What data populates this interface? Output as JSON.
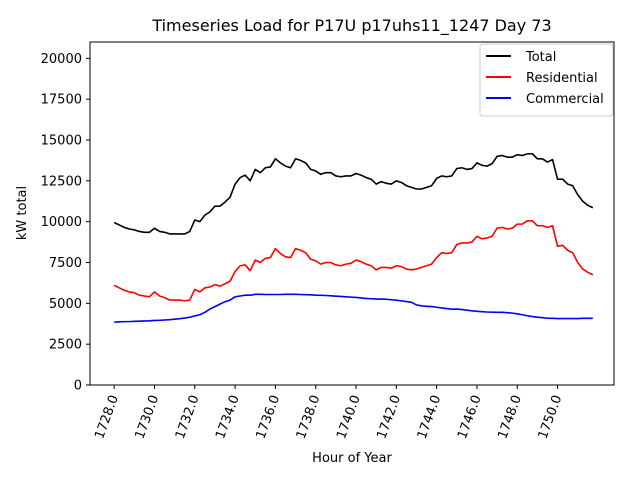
{
  "chart_data": {
    "type": "line",
    "title": "Timeseries Load for P17U p17uhs11_1247  Day 73",
    "xlabel": "Hour of Year",
    "ylabel": "kW total",
    "xlim": [
      1726.8,
      1752.8
    ],
    "ylim": [
      0,
      21000
    ],
    "xticks": [
      1728,
      1730,
      1732,
      1734,
      1736,
      1738,
      1740,
      1742,
      1744,
      1746,
      1748,
      1750
    ],
    "xtick_labels": [
      "1728.0",
      "1730.0",
      "1732.0",
      "1734.0",
      "1736.0",
      "1738.0",
      "1740.0",
      "1742.0",
      "1744.0",
      "1746.0",
      "1748.0",
      "1750.0"
    ],
    "yticks": [
      0,
      2500,
      5000,
      7500,
      10000,
      12500,
      15000,
      17500,
      20000
    ],
    "ytick_labels": [
      "0",
      "2500",
      "5000",
      "7500",
      "10000",
      "12500",
      "15000",
      "17500",
      "20000"
    ],
    "legend_position": "top-right",
    "x_start": 1728,
    "x_step": 0.25,
    "series": [
      {
        "name": "Total",
        "color": "#000000",
        "values": [
          9950,
          9800,
          9650,
          9550,
          9500,
          9400,
          9350,
          9350,
          9600,
          9400,
          9350,
          9250,
          9250,
          9250,
          9250,
          9400,
          10100,
          10000,
          10400,
          10600,
          10950,
          10950,
          11200,
          11500,
          12300,
          12700,
          12850,
          12500,
          13200,
          13000,
          13300,
          13350,
          13850,
          13600,
          13400,
          13300,
          13850,
          13750,
          13600,
          13200,
          13100,
          12900,
          13000,
          13000,
          12800,
          12750,
          12800,
          12800,
          12950,
          12850,
          12700,
          12600,
          12300,
          12450,
          12350,
          12300,
          12500,
          12400,
          12200,
          12100,
          12000,
          12000,
          12100,
          12200,
          12650,
          12800,
          12750,
          12800,
          13250,
          13300,
          13200,
          13250,
          13600,
          13450,
          13400,
          13550,
          14000,
          14050,
          13950,
          13950,
          14100,
          14050,
          14150,
          14150,
          13850,
          13850,
          13650,
          13800,
          12600,
          12600,
          12300,
          12200,
          11650,
          11250,
          11000,
          10850
        ]
      },
      {
        "name": "Residential",
        "color": "#ff0000",
        "values": [
          6100,
          5950,
          5800,
          5700,
          5650,
          5500,
          5450,
          5400,
          5700,
          5450,
          5350,
          5200,
          5200,
          5200,
          5150,
          5200,
          5850,
          5700,
          5950,
          6000,
          6150,
          6050,
          6200,
          6350,
          6950,
          7300,
          7350,
          7000,
          7650,
          7500,
          7750,
          7800,
          8350,
          8050,
          7850,
          7800,
          8350,
          8250,
          8100,
          7700,
          7600,
          7400,
          7500,
          7500,
          7350,
          7300,
          7400,
          7450,
          7650,
          7550,
          7400,
          7300,
          7050,
          7200,
          7200,
          7150,
          7300,
          7250,
          7100,
          7050,
          7100,
          7200,
          7300,
          7400,
          7800,
          8100,
          8050,
          8100,
          8600,
          8700,
          8700,
          8750,
          9100,
          8950,
          9000,
          9100,
          9600,
          9650,
          9550,
          9600,
          9850,
          9850,
          10050,
          10050,
          9750,
          9750,
          9650,
          9750,
          8500,
          8550,
          8250,
          8100,
          7500,
          7100,
          6900,
          6750
        ]
      },
      {
        "name": "Commercial",
        "color": "#0000ff",
        "values": [
          3850,
          3870,
          3880,
          3880,
          3900,
          3910,
          3920,
          3930,
          3950,
          3960,
          3980,
          4000,
          4030,
          4060,
          4100,
          4150,
          4230,
          4300,
          4450,
          4650,
          4800,
          4950,
          5100,
          5200,
          5400,
          5450,
          5500,
          5500,
          5550,
          5550,
          5540,
          5540,
          5540,
          5540,
          5550,
          5550,
          5550,
          5540,
          5530,
          5520,
          5500,
          5490,
          5480,
          5460,
          5440,
          5420,
          5400,
          5380,
          5360,
          5330,
          5300,
          5280,
          5260,
          5260,
          5250,
          5220,
          5190,
          5150,
          5110,
          5060,
          4900,
          4850,
          4820,
          4800,
          4760,
          4720,
          4680,
          4640,
          4650,
          4620,
          4580,
          4540,
          4510,
          4490,
          4470,
          4460,
          4450,
          4450,
          4430,
          4400,
          4360,
          4300,
          4240,
          4190,
          4150,
          4120,
          4090,
          4080,
          4070,
          4070,
          4070,
          4070,
          4070,
          4080,
          4080,
          4080
        ]
      }
    ]
  }
}
